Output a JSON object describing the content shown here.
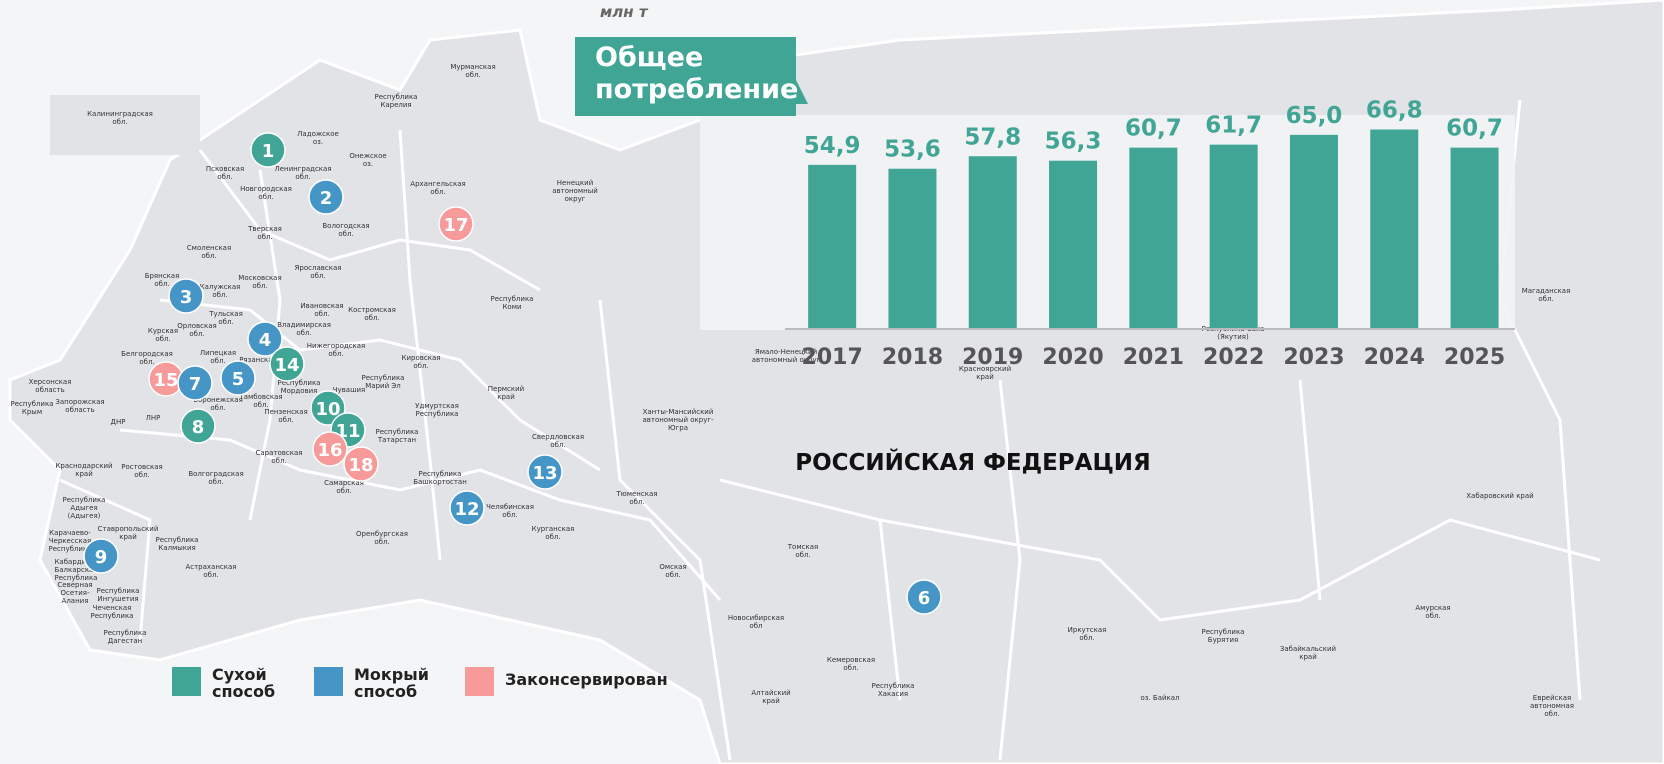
{
  "map": {
    "country": "РОССИЙСКАЯ ФЕДЕРАЦИЯ",
    "regions": [
      [
        "Мурманская",
        "обл."
      ],
      [
        "Республика",
        "Карелия"
      ],
      [
        "Калининградская",
        "обл."
      ],
      [
        "Ладожское",
        "оз."
      ],
      [
        "Онежское",
        "оз."
      ],
      [
        "Псковская",
        "обл."
      ],
      [
        "Ленинградская",
        "обл."
      ],
      [
        "Новгородская",
        "обл."
      ],
      [
        "Архангельская",
        "обл."
      ],
      [
        "Ненецкий",
        "автономный",
        "округ"
      ],
      [
        "Вологодская",
        "обл."
      ],
      [
        "Тверская",
        "обл."
      ],
      [
        "Смоленская",
        "обл."
      ],
      [
        "Ярославская",
        "обл."
      ],
      [
        "Брянская",
        "обл."
      ],
      [
        "Московская",
        "обл."
      ],
      [
        "Калужская",
        "обл."
      ],
      [
        "Республика",
        "Коми"
      ],
      [
        "Тульская",
        "обл."
      ],
      [
        "Ивановская",
        "обл."
      ],
      [
        "Костромская",
        "обл."
      ],
      [
        "Курская",
        "обл."
      ],
      [
        "Орловская",
        "обл."
      ],
      [
        "Владимирская",
        "обл."
      ],
      [
        "Нижегородская",
        "обл."
      ],
      [
        "Белгородская",
        "обл."
      ],
      [
        "Липецкая",
        "обл."
      ],
      [
        "Рязанская"
      ],
      [
        "Кировская",
        "обл."
      ],
      [
        "Республика",
        "Марий Эл"
      ],
      [
        "Чувашия"
      ],
      [
        "Республика",
        "Мордовия"
      ],
      [
        "Херсонская",
        "область"
      ],
      [
        "Запорожская",
        "область"
      ],
      [
        "Республика",
        "Крым"
      ],
      [
        "Тамбовская",
        "обл."
      ],
      [
        "Воронежская",
        "обл."
      ],
      [
        "Пермский",
        "край"
      ],
      [
        "ДНР"
      ],
      [
        "ЛНР"
      ],
      [
        "Пензенская",
        "обл."
      ],
      [
        "Удмуртская",
        "Республика"
      ],
      [
        "Ханты-Мансийский",
        "автономный округ-",
        "Югра"
      ],
      [
        "Республика",
        "Татарстан"
      ],
      [
        "Свердловская",
        "обл."
      ],
      [
        "Саратовская",
        "обл."
      ],
      [
        "Краснодарский",
        "край"
      ],
      [
        "Ростовская",
        "обл."
      ],
      [
        "Волгоградская",
        "обл."
      ],
      [
        "Республика",
        "Башкортостан"
      ],
      [
        "Самарская",
        "обл."
      ],
      [
        "Тюменская",
        "обл."
      ],
      [
        "Челябинская",
        "обл."
      ],
      [
        "Республика",
        "Адыгея",
        "(Адыгея)"
      ],
      [
        "Ставропольский",
        "край"
      ],
      [
        "Курганская",
        "обл."
      ],
      [
        "Оренбургская",
        "обл."
      ],
      [
        "Карачаево-",
        "Черкесская",
        "Республика"
      ],
      [
        "Республика",
        "Калмыкия"
      ],
      [
        "Томская",
        "обл."
      ],
      [
        "Кабардино-",
        "Балкарская",
        "Республика"
      ],
      [
        "Астраханская",
        "обл."
      ],
      [
        "Омская",
        "обл."
      ],
      [
        "Северная",
        "Осетия-",
        "Алания"
      ],
      [
        "Республика",
        "Ингушетия"
      ],
      [
        "Чеченская",
        "Республика"
      ],
      [
        "Новосибирская",
        "обл"
      ],
      [
        "Иркутская",
        "обл."
      ],
      [
        "Республика",
        "Бурятия"
      ],
      [
        "Республика",
        "Дагестан"
      ],
      [
        "Забайкальский",
        "край"
      ],
      [
        "Кемеровская",
        "обл."
      ],
      [
        "Республика",
        "Хакасия"
      ],
      [
        "Алтайский",
        "край"
      ],
      [
        "Амурская",
        "обл."
      ],
      [
        "Хабаровский край"
      ],
      [
        "Магаданская",
        "обл."
      ],
      [
        "Ямало-Ненецкий",
        "автономный округ"
      ],
      [
        "Красноярский",
        "край"
      ],
      [
        "Республика Саха",
        "(Якутия)"
      ],
      [
        "оз. Байкал"
      ],
      [
        "Еврейская",
        "автономная",
        "обл."
      ]
    ],
    "markers": [
      {
        "label": 1,
        "method": 0
      },
      {
        "label": 2,
        "method": 1
      },
      {
        "label": 3,
        "method": 1
      },
      {
        "label": 4,
        "method": 1
      },
      {
        "label": 5,
        "method": 1
      },
      {
        "label": 15,
        "method": 2
      },
      {
        "label": 7,
        "method": 1
      },
      {
        "label": 14,
        "method": 0
      },
      {
        "label": 8,
        "method": 0
      },
      {
        "label": 10,
        "method": 0
      },
      {
        "label": 11,
        "method": 0
      },
      {
        "label": 16,
        "method": 2
      },
      {
        "label": 18,
        "method": 2
      },
      {
        "label": 17,
        "method": 2
      },
      {
        "label": 13,
        "method": 1
      },
      {
        "label": 12,
        "method": 1
      },
      {
        "label": 9,
        "method": 1
      },
      {
        "label": 6,
        "method": 1
      }
    ],
    "legend": [
      {
        "name": [
          "Сухой",
          "способ"
        ],
        "color": "#41a596"
      },
      {
        "name": [
          "Мокрый",
          "способ"
        ],
        "color": "#4596c6"
      },
      {
        "name": [
          "Законсервирован"
        ],
        "color": "#f79a9a"
      }
    ]
  },
  "chart_data": {
    "type": "bar",
    "unit": "млн т",
    "title": [
      "Общее",
      "потребление"
    ],
    "categories": [
      "2017",
      "2018",
      "2019",
      "2020",
      "2021",
      "2022",
      "2023",
      "2024",
      "2025"
    ],
    "values": [
      54.9,
      53.6,
      57.8,
      56.3,
      60.7,
      61.7,
      65.0,
      66.8,
      60.7
    ],
    "value_labels": [
      "54,9",
      "53,6",
      "57,8",
      "56,3",
      "60,7",
      "61,7",
      "65,0",
      "66,8",
      "60,7"
    ],
    "color": "#41a596",
    "ylim": [
      0,
      70
    ]
  }
}
